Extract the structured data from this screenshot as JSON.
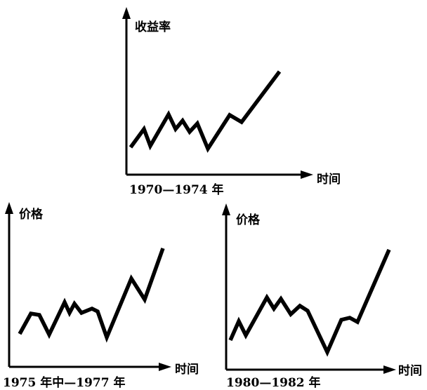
{
  "charts": [
    {
      "id": "top",
      "y_label": "收益率",
      "x_label": "时间",
      "caption": "1970—1974 年"
    },
    {
      "id": "bottom-left",
      "y_label": "价格",
      "x_label": "时间",
      "caption": "1975 年中—1977 年"
    },
    {
      "id": "bottom-right",
      "y_label": "价格",
      "x_label": "时间",
      "caption": "1980—1982 年"
    }
  ]
}
